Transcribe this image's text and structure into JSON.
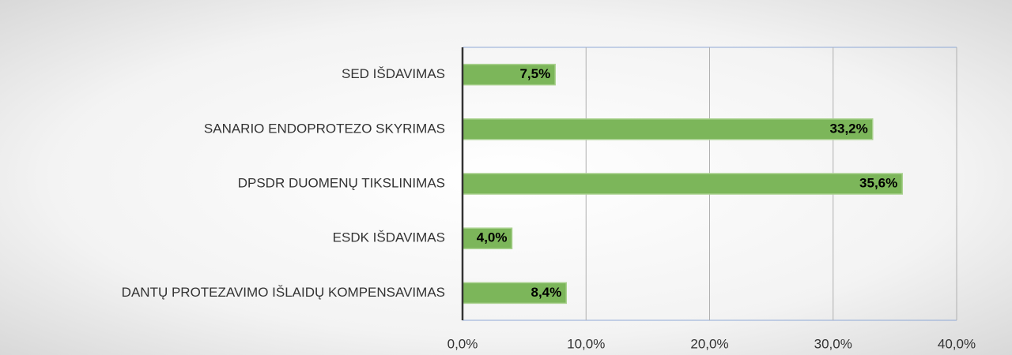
{
  "chart_data": {
    "type": "barh",
    "categories": [
      "SED IŠDAVIMAS",
      "SANARIO ENDOPROTEZO SKYRIMAS",
      "DPSDR DUOMENŲ TIKSLINIMAS",
      "ESDK IŠDAVIMAS",
      "DANTŲ PROTEZAVIMO IŠLAIDŲ KOMPENSAVIMAS"
    ],
    "values": [
      7.5,
      33.2,
      35.6,
      4.0,
      8.4
    ],
    "value_labels": [
      "7,5%",
      "33,2%",
      "35,6%",
      "4,0%",
      "8,4%"
    ],
    "color": "#7cb65a",
    "xlim": [
      0,
      40
    ],
    "xticks": [
      {
        "value": 0,
        "label": "0,0%"
      },
      {
        "value": 10,
        "label": "10,0%"
      },
      {
        "value": 20,
        "label": "20,0%"
      },
      {
        "value": 30,
        "label": "30,0%"
      },
      {
        "value": 40,
        "label": "40,0%"
      }
    ],
    "grid": true
  }
}
